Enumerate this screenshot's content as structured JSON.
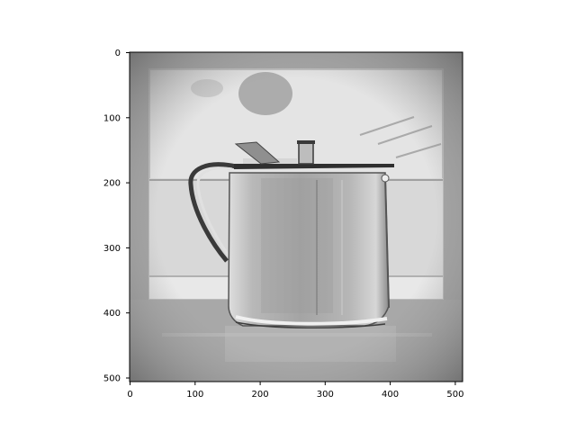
{
  "figure": {
    "description_colors": {
      "background": "#ffffff",
      "axes_frame": "#000000",
      "image_gray_dark": "#6f6f6f",
      "image_gray_mid": "#9a9a9a",
      "image_gray_light": "#e6e6e6"
    }
  },
  "axes": {
    "x_ticks": [
      "0",
      "100",
      "200",
      "300",
      "400",
      "500"
    ],
    "y_ticks": [
      "0",
      "100",
      "200",
      "300",
      "400",
      "500"
    ],
    "x_range": [
      0,
      512
    ],
    "y_range": [
      0,
      512
    ],
    "y_inverted": true
  }
}
